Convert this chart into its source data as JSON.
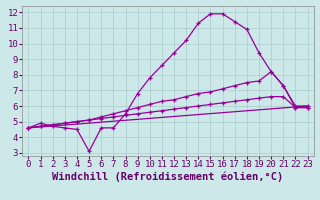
{
  "xlabel": "Windchill (Refroidissement éolien,°C)",
  "background_color": "#cce8e8",
  "grid_color": "#aacccc",
  "line_color": "#990099",
  "xlim": [
    -0.5,
    23.5
  ],
  "ylim": [
    2.8,
    12.4
  ],
  "xticks": [
    0,
    1,
    2,
    3,
    4,
    5,
    6,
    7,
    8,
    9,
    10,
    11,
    12,
    13,
    14,
    15,
    16,
    17,
    18,
    19,
    20,
    21,
    22,
    23
  ],
  "yticks": [
    3,
    4,
    5,
    6,
    7,
    8,
    9,
    10,
    11,
    12
  ],
  "line1_x": [
    0,
    1,
    2,
    3,
    4,
    5,
    6,
    7,
    8,
    9,
    10,
    11,
    12,
    13,
    14,
    15,
    16,
    17,
    18,
    19,
    20,
    21,
    22,
    23
  ],
  "line1_y": [
    4.6,
    4.9,
    4.7,
    4.6,
    4.5,
    3.1,
    4.6,
    4.6,
    5.5,
    6.8,
    7.8,
    8.6,
    9.4,
    10.2,
    11.3,
    11.9,
    11.9,
    11.4,
    10.9,
    9.4,
    8.2,
    7.3,
    5.9,
    5.9
  ],
  "line2_x": [
    0,
    1,
    2,
    3,
    4,
    5,
    6,
    7,
    8,
    9,
    10,
    11,
    12,
    13,
    14,
    15,
    16,
    17,
    18,
    19,
    20,
    21,
    22,
    23
  ],
  "line2_y": [
    4.6,
    4.7,
    4.8,
    4.9,
    5.0,
    5.1,
    5.3,
    5.5,
    5.7,
    5.9,
    6.1,
    6.3,
    6.4,
    6.6,
    6.8,
    6.9,
    7.1,
    7.3,
    7.5,
    7.6,
    8.2,
    7.3,
    6.0,
    6.0
  ],
  "line3_x": [
    0,
    1,
    2,
    3,
    4,
    5,
    6,
    7,
    8,
    9,
    10,
    11,
    12,
    13,
    14,
    15,
    16,
    17,
    18,
    19,
    20,
    21,
    22,
    23
  ],
  "line3_y": [
    4.6,
    4.7,
    4.8,
    4.9,
    5.0,
    5.1,
    5.2,
    5.3,
    5.4,
    5.5,
    5.6,
    5.7,
    5.8,
    5.9,
    6.0,
    6.1,
    6.2,
    6.3,
    6.4,
    6.5,
    6.6,
    6.6,
    5.9,
    5.9
  ],
  "line4_x": [
    0,
    23
  ],
  "line4_y": [
    4.6,
    6.0
  ],
  "tick_fontsize": 6.5,
  "xlabel_fontsize": 7.5
}
